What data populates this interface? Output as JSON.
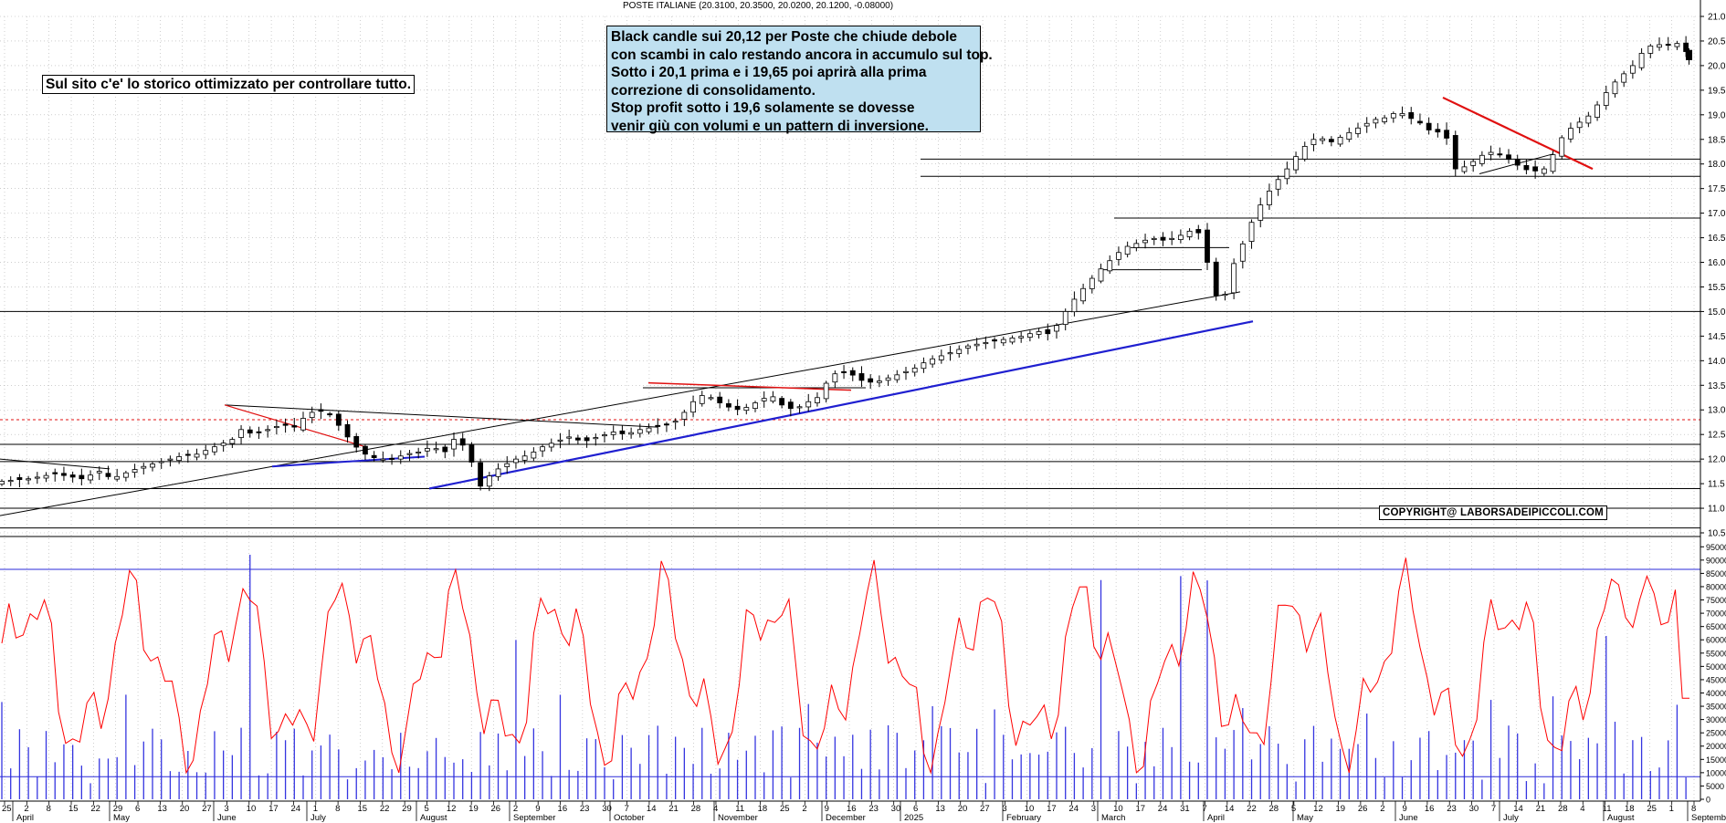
{
  "header": {
    "title": "POSTE ITALIANE (20.3100, 20.3500, 20.0200, 20.1200, -0.08000)"
  },
  "annotations": {
    "note_lines": [
      "Black candle sui 20,12 per Poste che chiude debole",
      "con scambi in calo restando ancora in accumulo sul top.",
      "Sotto i 20,1 prima e i 19,65 poi aprirà alla prima",
      "correzione di consolidamento.",
      "Stop profit sotto i 19,6 solamente se dovesse",
      "venir giù con volumi e un pattern di inversione."
    ],
    "site_note": "Sul sito c'e' lo storico ottimizzato per controllare tutto.",
    "copyright": "COPYRIGHT@ LABORSADEIPICCOLI.COM"
  },
  "colors": {
    "price": "#000000",
    "support_trend": "#1f1fd0",
    "resistance_trend": "#e01010",
    "oscillator": "#ff0000",
    "volume": "#3535e0",
    "grid": "#b0b0b0",
    "note_bg": "#bfe0f0"
  },
  "chart_data": [
    {
      "type": "candlestick",
      "title": "POSTE ITALIANE (20.3100, 20.3500, 20.0200, 20.1200, -0.08000)",
      "ylim": [
        10.5,
        21.0
      ],
      "yticks": [
        "21.0",
        "20.5",
        "20.0",
        "19.5",
        "19.0",
        "18.5",
        "18.0",
        "17.5",
        "17.0",
        "16.5",
        "16.0",
        "15.5",
        "15.0",
        "14.5",
        "14.0",
        "13.5",
        "13.0",
        "12.5",
        "12.0",
        "11.5",
        "11.0",
        "10.5"
      ],
      "last_candle": {
        "open": 20.31,
        "high": 20.35,
        "low": 20.02,
        "close": 20.12,
        "change": -0.08
      },
      "price_path": [
        [
          0,
          11.55
        ],
        [
          15,
          11.6
        ],
        [
          30,
          11.7
        ],
        [
          45,
          11.6
        ],
        [
          55,
          11.75
        ],
        [
          62,
          11.6
        ],
        [
          72,
          11.75
        ],
        [
          80,
          11.85
        ],
        [
          90,
          11.95
        ],
        [
          100,
          12.05
        ],
        [
          110,
          12.1
        ],
        [
          120,
          12.25
        ],
        [
          130,
          12.4
        ],
        [
          135,
          12.6
        ],
        [
          142,
          12.5
        ],
        [
          150,
          12.6
        ],
        [
          158,
          12.7
        ],
        [
          165,
          12.65
        ],
        [
          172,
          12.9
        ],
        [
          178,
          13.0
        ],
        [
          185,
          12.9
        ],
        [
          192,
          12.6
        ],
        [
          198,
          12.3
        ],
        [
          205,
          12.1
        ],
        [
          212,
          12.0
        ],
        [
          220,
          12.0
        ],
        [
          228,
          12.1
        ],
        [
          236,
          12.15
        ],
        [
          242,
          12.25
        ],
        [
          250,
          12.15
        ],
        [
          256,
          12.45
        ],
        [
          262,
          12.2
        ],
        [
          266,
          11.85
        ],
        [
          270,
          11.45
        ],
        [
          276,
          11.7
        ],
        [
          282,
          11.85
        ],
        [
          290,
          12.0
        ],
        [
          298,
          12.1
        ],
        [
          305,
          12.25
        ],
        [
          312,
          12.35
        ],
        [
          320,
          12.45
        ],
        [
          328,
          12.35
        ],
        [
          336,
          12.45
        ],
        [
          345,
          12.55
        ],
        [
          352,
          12.5
        ],
        [
          360,
          12.6
        ],
        [
          368,
          12.65
        ],
        [
          375,
          12.7
        ],
        [
          382,
          12.8
        ],
        [
          388,
          13.1
        ],
        [
          394,
          13.3
        ],
        [
          400,
          13.25
        ],
        [
          407,
          13.1
        ],
        [
          414,
          13.0
        ],
        [
          420,
          13.05
        ],
        [
          428,
          13.2
        ],
        [
          434,
          13.3
        ],
        [
          440,
          13.1
        ],
        [
          447,
          13.0
        ],
        [
          454,
          13.15
        ],
        [
          460,
          13.25
        ],
        [
          466,
          13.6
        ],
        [
          472,
          13.8
        ],
        [
          478,
          13.75
        ],
        [
          485,
          13.6
        ],
        [
          492,
          13.55
        ],
        [
          500,
          13.65
        ],
        [
          508,
          13.75
        ],
        [
          515,
          13.85
        ],
        [
          522,
          14.0
        ],
        [
          530,
          14.1
        ],
        [
          538,
          14.2
        ],
        [
          545,
          14.3
        ],
        [
          552,
          14.35
        ],
        [
          560,
          14.4
        ],
        [
          568,
          14.45
        ],
        [
          576,
          14.5
        ],
        [
          584,
          14.6
        ],
        [
          590,
          14.55
        ],
        [
          596,
          14.75
        ],
        [
          600,
          15.0
        ],
        [
          606,
          15.3
        ],
        [
          612,
          15.55
        ],
        [
          618,
          15.8
        ],
        [
          624,
          16.0
        ],
        [
          630,
          16.2
        ],
        [
          636,
          16.35
        ],
        [
          642,
          16.4
        ],
        [
          648,
          16.5
        ],
        [
          655,
          16.45
        ],
        [
          662,
          16.5
        ],
        [
          668,
          16.6
        ],
        [
          674,
          16.7
        ],
        [
          678,
          16.3
        ],
        [
          682,
          15.7
        ],
        [
          686,
          15.2
        ],
        [
          690,
          15.35
        ],
        [
          694,
          15.9
        ],
        [
          698,
          16.2
        ],
        [
          702,
          16.55
        ],
        [
          706,
          16.9
        ],
        [
          712,
          17.3
        ],
        [
          718,
          17.6
        ],
        [
          724,
          17.85
        ],
        [
          730,
          18.15
        ],
        [
          736,
          18.4
        ],
        [
          742,
          18.55
        ],
        [
          750,
          18.45
        ],
        [
          758,
          18.6
        ],
        [
          766,
          18.75
        ],
        [
          774,
          18.9
        ],
        [
          782,
          18.95
        ],
        [
          788,
          19.1
        ],
        [
          792,
          18.95
        ],
        [
          798,
          18.9
        ],
        [
          804,
          18.7
        ],
        [
          810,
          18.65
        ],
        [
          816,
          18.5
        ],
        [
          820,
          17.9
        ],
        [
          826,
          17.95
        ],
        [
          832,
          18.1
        ],
        [
          838,
          18.25
        ],
        [
          845,
          18.2
        ],
        [
          852,
          18.05
        ],
        [
          858,
          17.9
        ],
        [
          864,
          17.85
        ],
        [
          870,
          17.9
        ],
        [
          874,
          18.1
        ],
        [
          878,
          18.45
        ],
        [
          884,
          18.7
        ],
        [
          890,
          18.85
        ],
        [
          896,
          19.0
        ],
        [
          902,
          19.3
        ],
        [
          908,
          19.6
        ],
        [
          914,
          19.8
        ],
        [
          920,
          20.0
        ],
        [
          926,
          20.3
        ],
        [
          932,
          20.45
        ],
        [
          938,
          20.4
        ],
        [
          944,
          20.45
        ],
        [
          948,
          20.45
        ],
        [
          952,
          20.12
        ]
      ],
      "levels": [
        18.1,
        17.75,
        16.9,
        15.0,
        12.8,
        12.3,
        11.95,
        11.4,
        11.0,
        10.6
      ],
      "xlabels": [
        "25",
        "2",
        "8",
        "15",
        "22",
        "29",
        "6",
        "13",
        "20",
        "27",
        "3",
        "10",
        "17",
        "24",
        "1",
        "8",
        "15",
        "22",
        "29",
        "5",
        "12",
        "19",
        "26",
        "2",
        "9",
        "16",
        "23",
        "30",
        "7",
        "14",
        "21",
        "28",
        "4",
        "11",
        "18",
        "25",
        "2",
        "9",
        "16",
        "23",
        "30",
        "6",
        "13",
        "20",
        "27",
        "3",
        "10",
        "17",
        "24",
        "3",
        "10",
        "17",
        "24",
        "31",
        "7",
        "14",
        "22",
        "28",
        "5",
        "12",
        "19",
        "26",
        "2",
        "9",
        "16",
        "23",
        "30",
        "7",
        "14",
        "21",
        "28",
        "4",
        "11",
        "18",
        "25",
        "1",
        "8"
      ],
      "months": [
        "April",
        "May",
        "June",
        "July",
        "August",
        "September",
        "October",
        "November",
        "December",
        "2025",
        "February",
        "March",
        "April",
        "May",
        "June",
        "July",
        "August",
        "Septembe"
      ]
    },
    {
      "type": "line",
      "yticks": [
        "95000",
        "90000",
        "85000",
        "80000",
        "75000",
        "70000",
        "65000",
        "60000",
        "55000",
        "50000",
        "45000",
        "40000",
        "35000",
        "30000",
        "25000",
        "20000",
        "15000",
        "10000",
        "5000",
        "0"
      ],
      "ylim": [
        0,
        97500
      ],
      "reference_lines": [
        86500,
        8500
      ]
    }
  ]
}
